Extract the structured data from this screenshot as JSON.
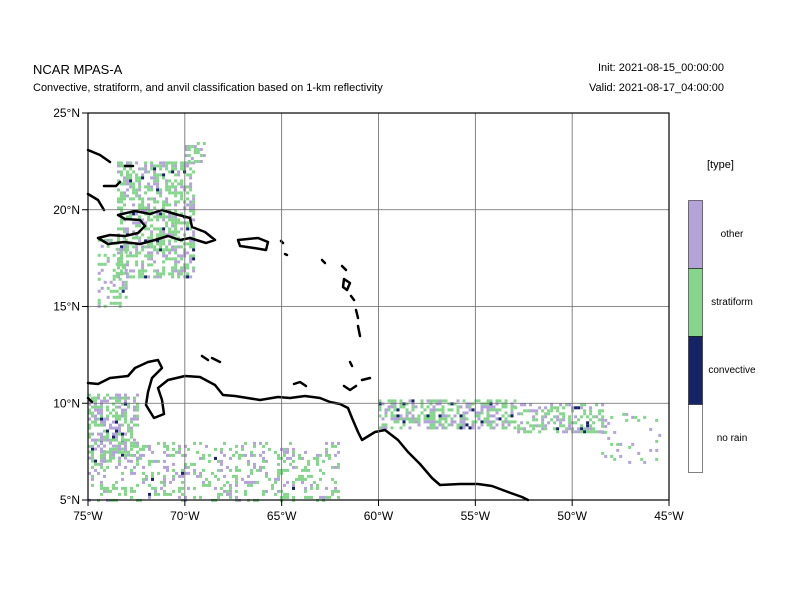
{
  "header": {
    "title": "NCAR MPAS-A",
    "subtitle": "Convective, stratiform, and anvil classification based on 1-km reflectivity",
    "init": "Init: 2021-08-15_00:00:00",
    "valid": "Valid: 2021-08-17_04:00:00"
  },
  "legend": {
    "title": "[type]",
    "items": [
      {
        "label": "other",
        "color": "#b3a3d9"
      },
      {
        "label": "stratiform",
        "color": "#85d68c"
      },
      {
        "label": "convective",
        "color": "#142466"
      },
      {
        "label": "no rain",
        "color": "#ffffff"
      }
    ]
  },
  "map": {
    "lon_range": [
      -75,
      -45
    ],
    "lat_range": [
      5,
      25
    ],
    "x_ticks": [
      "75°W",
      "70°W",
      "65°W",
      "60°W",
      "55°W",
      "50°W",
      "45°W"
    ],
    "y_ticks": [
      "5°N",
      "10°N",
      "15°N",
      "20°N",
      "25°N"
    ],
    "grid": true,
    "coastline_color": "#000000"
  }
}
